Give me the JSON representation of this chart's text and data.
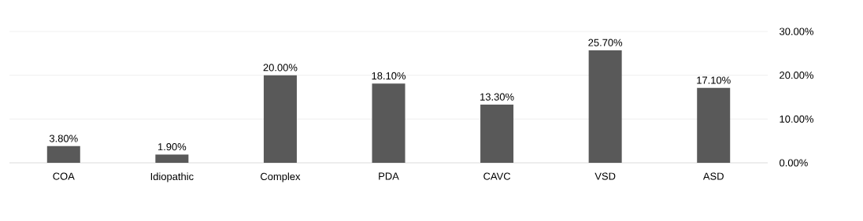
{
  "chart_data": {
    "type": "bar",
    "categories": [
      "COA",
      "Idiopathic",
      "Complex",
      "PDA",
      "CAVC",
      "VSD",
      "ASD"
    ],
    "values": [
      3.8,
      1.9,
      20.0,
      18.1,
      13.3,
      25.7,
      17.1
    ],
    "value_labels": [
      "3.80%",
      "1.90%",
      "20.00%",
      "18.10%",
      "13.30%",
      "25.70%",
      "17.10%"
    ],
    "color": "#595959",
    "ylim": [
      0,
      30
    ],
    "yticks": [
      {
        "value": 0,
        "label": "0.00%"
      },
      {
        "value": 10,
        "label": "10.00%"
      },
      {
        "value": 20,
        "label": "20.00%"
      },
      {
        "value": 30,
        "label": "30.00%"
      }
    ],
    "grid": "y"
  }
}
